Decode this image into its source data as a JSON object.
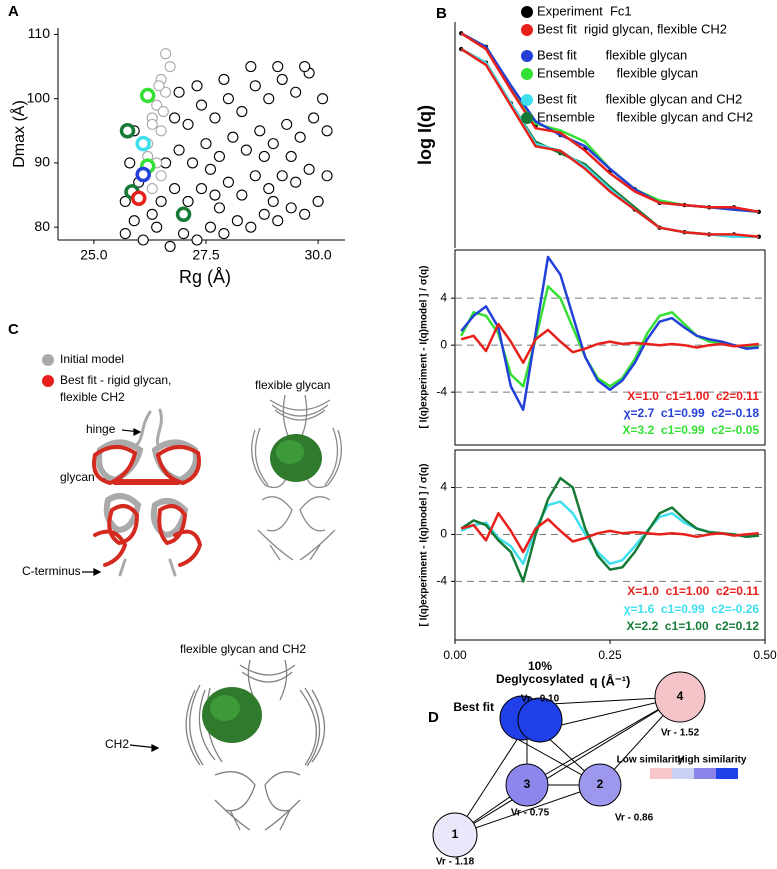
{
  "panel_labels": [
    "A",
    "B",
    "C",
    "D"
  ],
  "chart_data": [
    {
      "type": "scatter",
      "xlabel": "Rg (Å)",
      "ylabel": "Dmax (Å)",
      "xlim": [
        24.2,
        30.6
      ],
      "ylim": [
        78,
        111
      ],
      "xticks": [
        {
          "value": 25,
          "label": "25.0"
        },
        {
          "value": 27.5,
          "label": "27.5"
        },
        {
          "value": 30,
          "label": "30.0"
        }
      ],
      "yticks": [
        80,
        90,
        100,
        110
      ],
      "series": [
        {
          "color": "#000000",
          "marker": "circle",
          "x": [
            25.7,
            25.9,
            26.1,
            26.4,
            26.7,
            27.0,
            27.3,
            27.6,
            27.9,
            28.2,
            28.5,
            28.8,
            29.1,
            29.4,
            29.7,
            30.0,
            25.7,
            26.0,
            26.5,
            26.8,
            27.1,
            27.4,
            27.7,
            28.0,
            28.3,
            28.6,
            28.9,
            29.2,
            29.5,
            29.8,
            30.2,
            25.8,
            26.6,
            26.9,
            27.2,
            27.5,
            27.8,
            28.1,
            28.4,
            28.7,
            29.0,
            29.3,
            29.6,
            29.9,
            30.2,
            25.9,
            26.8,
            27.1,
            27.4,
            27.7,
            28.0,
            28.3,
            28.6,
            28.9,
            29.2,
            29.5,
            29.8,
            30.1,
            26.9,
            27.3,
            27.9,
            28.5,
            29.1,
            29.7,
            27.6,
            28.8,
            29.4,
            26.3,
            27.8,
            29.0
          ],
          "values": [
            79,
            81,
            78,
            80,
            77,
            79,
            78,
            80,
            79,
            81,
            80,
            82,
            81,
            83,
            82,
            84,
            84,
            87,
            84,
            86,
            84,
            86,
            85,
            87,
            85,
            88,
            86,
            88,
            87,
            89,
            88,
            90,
            90,
            92,
            90,
            93,
            91,
            94,
            92,
            95,
            93,
            96,
            94,
            97,
            95,
            95,
            97,
            96,
            99,
            97,
            100,
            98,
            102,
            100,
            103,
            101,
            104,
            100,
            101,
            102,
            103,
            105,
            105,
            105,
            89,
            91,
            91,
            82,
            83,
            84
          ]
        },
        {
          "color": "#aaaaaa",
          "marker": "circle",
          "x": [
            26.3,
            26.4,
            26.2,
            26.5,
            26.3,
            26.4,
            26.6,
            26.5,
            26.7,
            26.6,
            26.2,
            26.5,
            26.3,
            26.45,
            26.55
          ],
          "values": [
            86,
            90,
            93,
            95,
            97,
            99,
            101,
            103,
            105,
            107,
            91,
            88,
            96,
            102,
            98
          ]
        },
        {
          "color": "#33e033",
          "marker": "ring",
          "x": [
            26.2,
            26.2
          ],
          "values": [
            100.5,
            89.5
          ]
        },
        {
          "color": "#157a35",
          "marker": "ring",
          "x": [
            25.75,
            25.85,
            27.0
          ],
          "values": [
            95,
            85.5,
            82
          ]
        },
        {
          "color": "#3ee0f0",
          "marker": "ring",
          "x": [
            26.1
          ],
          "values": [
            93
          ]
        },
        {
          "color": "#2340d8",
          "marker": "ring",
          "x": [
            26.1
          ],
          "values": [
            88.2
          ]
        },
        {
          "color": "#e8201c",
          "marker": "ring",
          "x": [
            26.0
          ],
          "values": [
            84.5
          ]
        }
      ]
    },
    {
      "type": "line",
      "ylabel": "log I(q)",
      "xlim": [
        0,
        0.5
      ],
      "ylim": [
        0,
        10
      ],
      "x": [
        0.01,
        0.05,
        0.09,
        0.13,
        0.17,
        0.21,
        0.25,
        0.29,
        0.33,
        0.37,
        0.41,
        0.45,
        0.49
      ],
      "legend": [
        {
          "name": "Experiment  Fc1",
          "color": "#000000"
        },
        {
          "name": "Best fit  rigid glycan, flexible CH2",
          "color": "#e8201c"
        },
        {
          "name": "Best fit        flexible glycan",
          "color": "#2340d8"
        },
        {
          "name": "Ensemble      flexible glycan",
          "color": "#33e033"
        },
        {
          "name": "Best fit        flexible glycan and CH2",
          "color": "#3ee0f0"
        },
        {
          "name": "Ensemble      flexible glycan and CH2",
          "color": "#157a35"
        }
      ],
      "series": [
        {
          "color": "#000000",
          "marker": "dots",
          "values": [
            9.5,
            8.9,
            7.1,
            5.4,
            5.0,
            4.4,
            3.4,
            2.6,
            2.0,
            1.9,
            1.8,
            1.8,
            1.6
          ]
        },
        {
          "color": "#33e033",
          "values": [
            9.5,
            8.9,
            7.1,
            5.5,
            5.2,
            4.7,
            3.5,
            2.6,
            2.1,
            1.9,
            1.8,
            1.7,
            1.6
          ]
        },
        {
          "color": "#2340d8",
          "values": [
            9.5,
            8.9,
            7.2,
            5.6,
            5.0,
            4.5,
            3.5,
            2.6,
            2.0,
            1.9,
            1.8,
            1.7,
            1.6
          ]
        },
        {
          "color": "#e8201c",
          "values": [
            9.5,
            8.8,
            7.0,
            5.3,
            5.1,
            4.3,
            3.3,
            2.5,
            2.0,
            1.9,
            1.8,
            1.8,
            1.6
          ]
        },
        {
          "color": "#000000",
          "marker": "dots",
          "values": [
            8.8,
            8.2,
            6.4,
            4.6,
            4.2,
            3.6,
            2.6,
            1.7,
            0.9,
            0.7,
            0.6,
            0.6,
            0.5
          ]
        },
        {
          "color": "#157a35",
          "values": [
            8.8,
            8.2,
            6.4,
            4.7,
            4.2,
            3.7,
            2.7,
            1.8,
            0.9,
            0.7,
            0.6,
            0.5,
            0.5
          ]
        },
        {
          "color": "#3ee0f0",
          "values": [
            8.8,
            8.2,
            6.4,
            4.6,
            4.3,
            3.6,
            2.6,
            1.7,
            0.9,
            0.7,
            0.6,
            0.5,
            0.5
          ]
        },
        {
          "color": "#e8201c",
          "values": [
            8.8,
            8.1,
            6.3,
            4.5,
            4.3,
            3.5,
            2.5,
            1.7,
            0.9,
            0.7,
            0.6,
            0.6,
            0.5
          ]
        }
      ]
    },
    {
      "type": "line",
      "ylabel": "[ I(q)experiment - I(q)model ] / σ(q)",
      "xlim": [
        0,
        0.5
      ],
      "ylim": [
        -8.5,
        8.1
      ],
      "yticks": [
        -4,
        0,
        4
      ],
      "grid": true,
      "x": [
        0.01,
        0.03,
        0.05,
        0.07,
        0.09,
        0.11,
        0.13,
        0.15,
        0.17,
        0.19,
        0.21,
        0.23,
        0.25,
        0.27,
        0.29,
        0.31,
        0.33,
        0.35,
        0.37,
        0.39,
        0.41,
        0.43,
        0.45,
        0.47,
        0.49
      ],
      "series": [
        {
          "color": "#33e033",
          "values": [
            0.8,
            2.8,
            2.5,
            1.0,
            -2.5,
            -3.5,
            0.5,
            5.0,
            4.0,
            1.5,
            -1.0,
            -2.8,
            -3.5,
            -2.8,
            -1.2,
            1.0,
            2.5,
            2.8,
            1.8,
            0.8,
            0.3,
            0.2,
            0,
            -0.2,
            -0.1
          ]
        },
        {
          "color": "#2340d8",
          "values": [
            1.2,
            2.5,
            3.3,
            1.5,
            -3.5,
            -5.5,
            1.0,
            7.5,
            6.0,
            2.5,
            -1.0,
            -3.0,
            -3.8,
            -3.0,
            -1.5,
            0.5,
            2.0,
            2.3,
            1.5,
            0.8,
            0.5,
            0.3,
            0,
            -0.3,
            -0.2
          ]
        },
        {
          "color": "#e8201c",
          "values": [
            0.5,
            0.8,
            -0.5,
            1.8,
            0.3,
            -1.5,
            0.5,
            1.3,
            0.3,
            -0.6,
            -0.3,
            0.1,
            0.3,
            0.1,
            0.2,
            0.1,
            0,
            0.1,
            0,
            -0.2,
            0,
            0.1,
            -0.1,
            0,
            0.1
          ]
        }
      ],
      "annotations": [
        {
          "text": "Χ=1.0  c1=1.00  c2=0.11",
          "color": "#e8201c"
        },
        {
          "text": "χ=2.7  c1=0.99  c2=-0.18",
          "color": "#2340d8"
        },
        {
          "text": "X=3.2  c1=0.99  c2=-0.05",
          "color": "#33e033"
        }
      ]
    },
    {
      "type": "line",
      "ylabel": "[ I(q)experiment - I(q)model ] / σ(q)",
      "xlabel": "q (Å⁻¹)",
      "xlim": [
        0,
        0.5
      ],
      "ylim": [
        -9,
        7.2
      ],
      "yticks": [
        -4,
        0,
        4
      ],
      "grid": true,
      "xticks": [
        {
          "value": 0,
          "label": "0.00"
        },
        {
          "value": 0.25,
          "label": "0.25"
        },
        {
          "value": 0.5,
          "label": "0.50"
        }
      ],
      "x": [
        0.01,
        0.03,
        0.05,
        0.07,
        0.09,
        0.11,
        0.13,
        0.15,
        0.17,
        0.19,
        0.21,
        0.23,
        0.25,
        0.27,
        0.29,
        0.31,
        0.33,
        0.35,
        0.37,
        0.39,
        0.41,
        0.43,
        0.45,
        0.47,
        0.49
      ],
      "series": [
        {
          "color": "#3ee0f0",
          "values": [
            0.3,
            0.8,
            1.0,
            -0.3,
            -1.0,
            -2.5,
            0.5,
            2.5,
            2.8,
            1.8,
            0,
            -1.5,
            -2.5,
            -2.2,
            -1.0,
            0.3,
            1.5,
            1.8,
            1.0,
            0.5,
            0.2,
            0.1,
            0,
            -0.2,
            -0.1
          ]
        },
        {
          "color": "#157a35",
          "values": [
            0.5,
            1.2,
            0.8,
            -0.5,
            -1.5,
            -4.0,
            0,
            3.0,
            4.8,
            4.0,
            0.5,
            -1.8,
            -3.0,
            -2.8,
            -1.5,
            0.2,
            1.8,
            2.3,
            1.3,
            0.5,
            0.2,
            0.1,
            0,
            -0.2,
            -0.1
          ]
        },
        {
          "color": "#e8201c",
          "values": [
            0.5,
            0.8,
            -0.5,
            1.8,
            0.3,
            -1.5,
            0.5,
            1.3,
            0.3,
            -0.6,
            -0.3,
            0.1,
            0.3,
            0.1,
            0.2,
            0.1,
            0,
            0.1,
            0,
            -0.2,
            0,
            0.1,
            -0.1,
            0,
            0.1
          ]
        }
      ],
      "annotations": [
        {
          "text": "X=1.0  c1=1.00  c2=0.11",
          "color": "#e8201c"
        },
        {
          "text": "χ=1.6  c1=0.99  c2=-0.26",
          "color": "#3ee0f0"
        },
        {
          "text": "X=2.2  c1=1.00  c2=0.12",
          "color": "#157a35"
        }
      ]
    }
  ],
  "panel_c": {
    "legend": [
      "Initial model",
      "Best fit - rigid glycan,",
      "flexible CH2"
    ],
    "titles": [
      "flexible glycan",
      "flexible glycan and CH2"
    ],
    "callouts": [
      "hinge",
      "glycan",
      "C-terminus",
      "CH2"
    ]
  },
  "panel_d": {
    "title": "10%",
    "subtitle": "Deglycosylated",
    "nodes": [
      {
        "label": "Best fit",
        "vr": "Vr - 0.10"
      },
      {
        "label": "4",
        "vr": "Vr - 1.52"
      },
      {
        "label": "1",
        "vr": "Vr - 1.18"
      },
      {
        "label": "3",
        "vr": "Vr - 0.75"
      },
      {
        "label": "2",
        "vr": "Vr - 0.86"
      }
    ],
    "legend": [
      "Low similarity",
      "High similarity"
    ]
  }
}
